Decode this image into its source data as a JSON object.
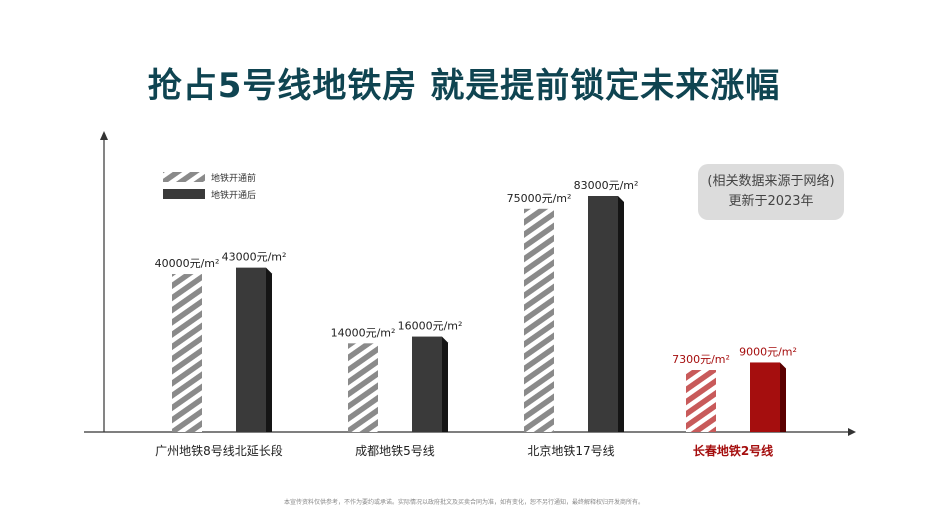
{
  "chart_data": {
    "type": "bar",
    "title": "抢占5号线地铁房 就是提前锁定未来涨幅",
    "categories": [
      "广州地铁8号线北延长段",
      "成都地铁5号线",
      "北京地铁17号线",
      "长春地铁2号线"
    ],
    "highlight_category": 3,
    "series": [
      {
        "name": "地铁开通前",
        "values": [
          40000,
          14000,
          75000,
          7300
        ],
        "value_labels": [
          "40000元/m²",
          "14000元/m²",
          "75000元/m²",
          "7300元/m²"
        ]
      },
      {
        "name": "地铁开通后",
        "values": [
          43000,
          16000,
          83000,
          9000
        ],
        "value_labels": [
          "43000元/m²",
          "16000元/m²",
          "83000元/m²",
          "9000元/m²"
        ]
      }
    ],
    "legend_position": "top-left",
    "grid": false,
    "colors": {
      "before": "#8a8a8a",
      "after": "#3a3a3a",
      "after_side": "#151515",
      "highlight_before": "#c85a5a",
      "highlight_after": "#a50e0e",
      "highlight_after_side": "#5a0000",
      "highlight_text": "#a50e0e",
      "axis": "#333333",
      "title": "#0f4451"
    }
  },
  "note": {
    "line1": "(相关数据来源于网络)",
    "line2": "更新于2023年"
  },
  "disclaimer": "本宣传资料仅供参考，不作为要约或承诺。实际情况以政府批文及买卖合同为准，如有变化，恕不另行通知，最终解释权归开发商所有。"
}
